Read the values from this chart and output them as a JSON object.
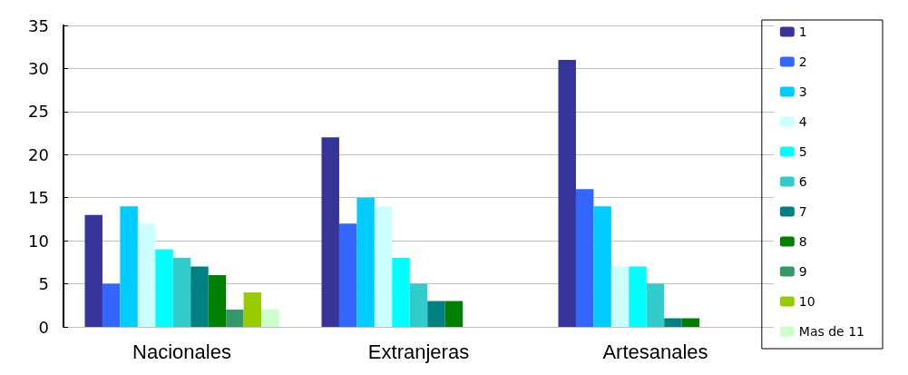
{
  "chart_data": {
    "type": "bar",
    "categories": [
      "Nacionales",
      "Extranjeras",
      "Artesanales"
    ],
    "series": [
      {
        "name": "1",
        "color": "#363399",
        "values": [
          13,
          22,
          31
        ]
      },
      {
        "name": "2",
        "color": "#3366ff",
        "values": [
          5,
          12,
          16
        ]
      },
      {
        "name": "3",
        "color": "#00ccff",
        "values": [
          14,
          15,
          14
        ]
      },
      {
        "name": "4",
        "color": "#ccffff",
        "values": [
          12,
          14,
          7
        ]
      },
      {
        "name": "5",
        "color": "#00ffff",
        "values": [
          9,
          8,
          7
        ]
      },
      {
        "name": "6",
        "color": "#33cccc",
        "values": [
          8,
          5,
          5
        ]
      },
      {
        "name": "7",
        "color": "#008080",
        "values": [
          7,
          3,
          1
        ]
      },
      {
        "name": "8",
        "color": "#008000",
        "values": [
          6,
          3,
          1
        ]
      },
      {
        "name": "9",
        "color": "#339966",
        "values": [
          2,
          0,
          0
        ]
      },
      {
        "name": "10",
        "color": "#99cc00",
        "values": [
          4,
          0,
          0
        ]
      },
      {
        "name": "Mas de 11",
        "color": "#ccffcc",
        "values": [
          2,
          0,
          0
        ]
      }
    ],
    "ylim": [
      0,
      35
    ],
    "yticks": [
      0,
      5,
      10,
      15,
      20,
      25,
      30,
      35
    ],
    "grid": "y",
    "legend": "right"
  }
}
